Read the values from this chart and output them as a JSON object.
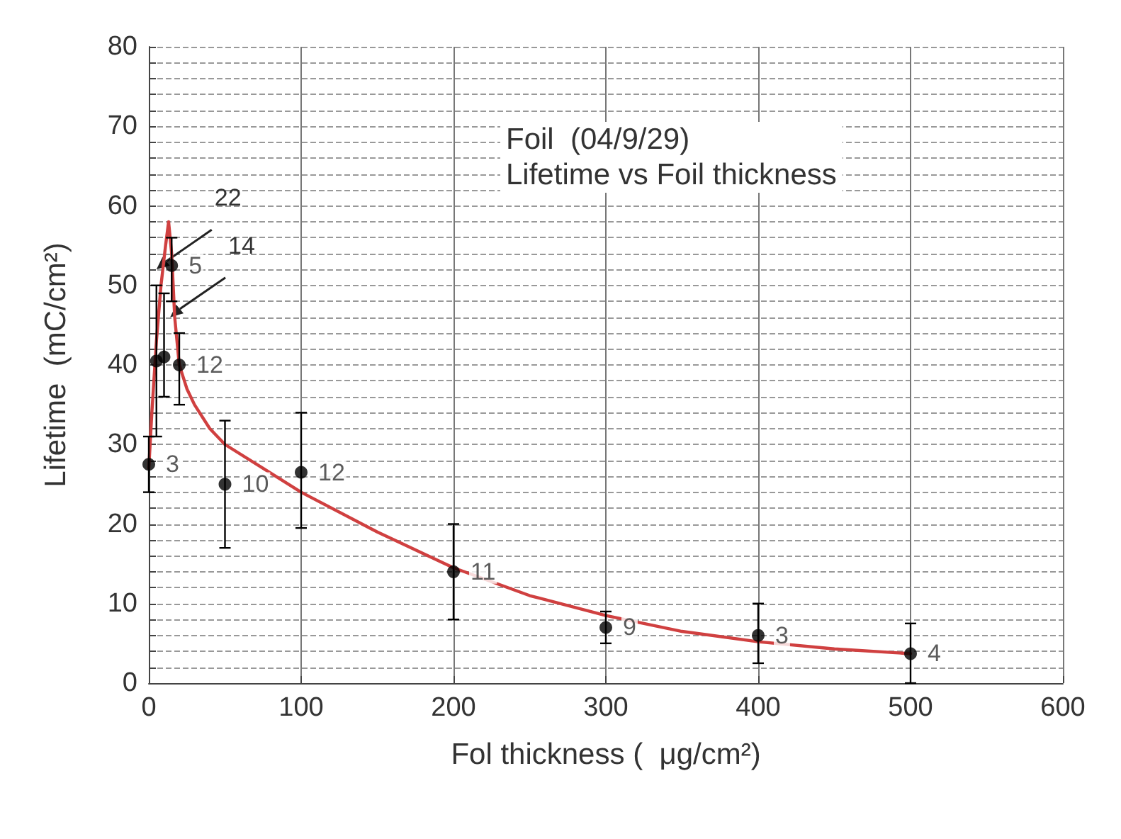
{
  "chart_data": {
    "type": "scatter",
    "title": "Foil  (04/9/29)",
    "subtitle": "Lifetime vs Foil thickness",
    "xlabel": "Fol thickness (  μg/cm²)",
    "ylabel": "Lifetime  (mC/cm²)",
    "xlim": [
      0,
      600
    ],
    "xticks": [
      0,
      100,
      200,
      300,
      400,
      500,
      600
    ],
    "ylim": [
      0,
      80
    ],
    "yticks": [
      0,
      {
        "value": 2,
        "label": null
      },
      {
        "value": 4,
        "label": null
      },
      {
        "value": 6,
        "label": null
      },
      {
        "value": 8,
        "label": null
      },
      10,
      {
        "value": 12,
        "label": null
      },
      {
        "value": 14,
        "label": null
      },
      {
        "value": 16,
        "label": null
      },
      {
        "value": 18,
        "label": null
      },
      20,
      {
        "value": 22,
        "label": null
      },
      {
        "value": 24,
        "label": null
      },
      {
        "value": 26,
        "label": null
      },
      {
        "value": 28,
        "label": null
      },
      30,
      {
        "value": 32,
        "label": null
      },
      {
        "value": 34,
        "label": null
      },
      {
        "value": 36,
        "label": null
      },
      {
        "value": 38,
        "label": null
      },
      40,
      {
        "value": 42,
        "label": null
      },
      {
        "value": 44,
        "label": null
      },
      {
        "value": 46,
        "label": null
      },
      {
        "value": 48,
        "label": null
      },
      50,
      {
        "value": 52,
        "label": null
      },
      {
        "value": 54,
        "label": null
      },
      {
        "value": 56,
        "label": null
      },
      {
        "value": 58,
        "label": null
      },
      60,
      {
        "value": 62,
        "label": null
      },
      {
        "value": 64,
        "label": null
      },
      {
        "value": 66,
        "label": null
      },
      {
        "value": 68,
        "label": null
      },
      70,
      {
        "value": 72,
        "label": null
      },
      {
        "value": 74,
        "label": null
      },
      {
        "value": 76,
        "label": null
      },
      {
        "value": 78,
        "label": null
      },
      80
    ],
    "grid": true,
    "marker": "circle",
    "series": [
      {
        "color": "#000000",
        "x": [
          0,
          5,
          10,
          15,
          20,
          50,
          100,
          200,
          300,
          400,
          500
        ],
        "values": [
          27.5,
          40.5,
          41,
          52.5,
          40,
          25,
          26.5,
          14,
          7,
          6,
          3.7
        ],
        "errors": [
          [
            24,
            31
          ],
          [
            31,
            50
          ],
          [
            36,
            49
          ],
          [
            48,
            56
          ],
          [
            35,
            44
          ],
          [
            17,
            33
          ],
          [
            19.5,
            34
          ],
          [
            8,
            20
          ],
          [
            5,
            9
          ],
          [
            2.5,
            10
          ],
          [
            0,
            7.5
          ]
        ]
      },
      {
        "type": "line",
        "color": "#d04040",
        "marker": "none",
        "x": [
          0,
          2,
          5,
          8,
          11,
          13,
          15,
          17,
          20,
          25,
          30,
          40,
          50,
          75,
          100,
          150,
          200,
          250,
          300,
          350,
          400,
          450,
          500
        ],
        "values": [
          27,
          34,
          43,
          50,
          55,
          58,
          54,
          46,
          40,
          37,
          35,
          32,
          30,
          27,
          24,
          19,
          14.5,
          11,
          8.5,
          6.5,
          5.2,
          4.3,
          3.7
        ]
      }
    ],
    "annotations": [
      {
        "text": "3",
        "x": 0,
        "y": 27.5
      },
      {
        "text": "22",
        "x": 5,
        "y": 52
      },
      {
        "text": "14",
        "x": 14,
        "y": 46
      },
      {
        "text": "5",
        "x": 15,
        "y": 52.5
      },
      {
        "text": "12",
        "x": 20,
        "y": 40
      },
      {
        "text": "10",
        "x": 50,
        "y": 25
      },
      {
        "text": "12",
        "x": 100,
        "y": 26.5
      },
      {
        "text": "11",
        "x": 200,
        "y": 14
      },
      {
        "text": "9",
        "x": 300,
        "y": 7
      },
      {
        "text": "3",
        "x": 400,
        "y": 6
      },
      {
        "text": "4",
        "x": 500,
        "y": 3.7
      }
    ]
  }
}
